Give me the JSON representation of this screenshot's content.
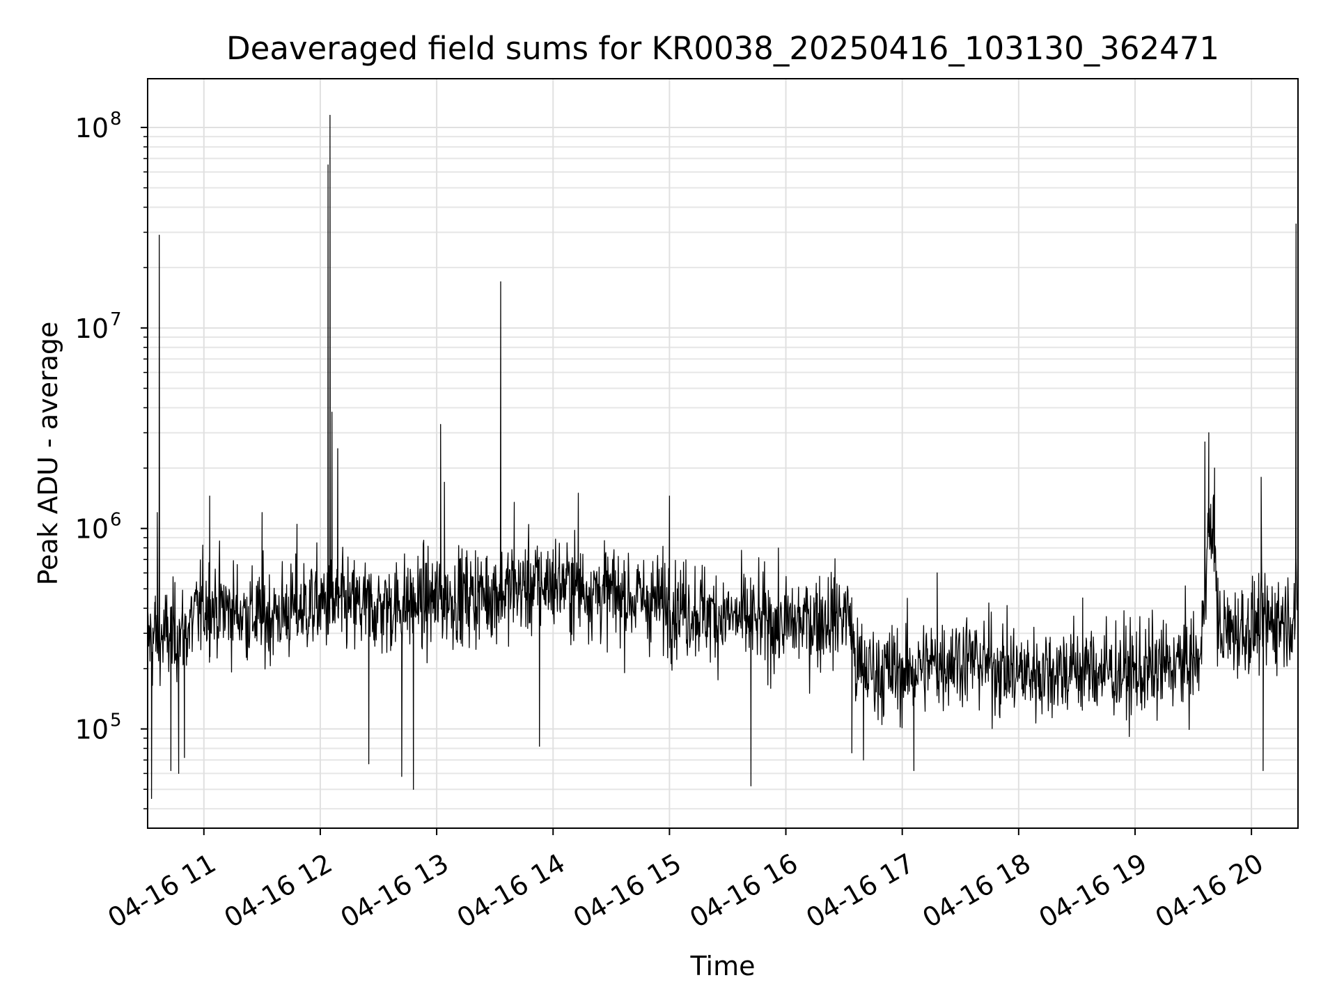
{
  "chart_data": {
    "type": "line",
    "title": "Deaveraged field sums for KR0038_20250416_103130_362471",
    "xlabel": "Time",
    "ylabel": "Peak ADU - average",
    "x_scale": "time",
    "y_scale": "log",
    "xlim": [
      "2025-04-16 10:31",
      "2025-04-16 20:24"
    ],
    "ylim": [
      32000,
      175000000
    ],
    "grid": true,
    "legend": "none",
    "x_ticks": [
      {
        "value": "2025-04-16 11:00",
        "label": "04-16 11"
      },
      {
        "value": "2025-04-16 12:00",
        "label": "04-16 12"
      },
      {
        "value": "2025-04-16 13:00",
        "label": "04-16 13"
      },
      {
        "value": "2025-04-16 14:00",
        "label": "04-16 14"
      },
      {
        "value": "2025-04-16 15:00",
        "label": "04-16 15"
      },
      {
        "value": "2025-04-16 16:00",
        "label": "04-16 16"
      },
      {
        "value": "2025-04-16 17:00",
        "label": "04-16 17"
      },
      {
        "value": "2025-04-16 18:00",
        "label": "04-16 18"
      },
      {
        "value": "2025-04-16 19:00",
        "label": "04-16 19"
      },
      {
        "value": "2025-04-16 20:00",
        "label": "04-16 20"
      }
    ],
    "y_ticks": [
      {
        "value": 100000,
        "base": "10",
        "exp": "5"
      },
      {
        "value": 1000000,
        "base": "10",
        "exp": "6"
      },
      {
        "value": 10000000,
        "base": "10",
        "exp": "7"
      },
      {
        "value": 100000000,
        "base": "10",
        "exp": "8"
      }
    ],
    "series": [
      {
        "color": "#000000",
        "baseline": [
          [
            "2025-04-16 10:31",
            280000
          ],
          [
            "2025-04-16 10:50",
            300000
          ],
          [
            "2025-04-16 11:00",
            420000
          ],
          [
            "2025-04-16 11:30",
            360000
          ],
          [
            "2025-04-16 12:00",
            420000
          ],
          [
            "2025-04-16 12:30",
            400000
          ],
          [
            "2025-04-16 13:00",
            440000
          ],
          [
            "2025-04-16 13:30",
            480000
          ],
          [
            "2025-04-16 14:00",
            540000
          ],
          [
            "2025-04-16 14:30",
            470000
          ],
          [
            "2025-04-16 15:00",
            420000
          ],
          [
            "2025-04-16 15:30",
            360000
          ],
          [
            "2025-04-16 16:00",
            330000
          ],
          [
            "2025-04-16 16:33",
            380000
          ],
          [
            "2025-04-16 16:36",
            200000
          ],
          [
            "2025-04-16 17:00",
            190000
          ],
          [
            "2025-04-16 17:30",
            230000
          ],
          [
            "2025-04-16 18:00",
            190000
          ],
          [
            "2025-04-16 18:30",
            200000
          ],
          [
            "2025-04-16 19:00",
            190000
          ],
          [
            "2025-04-16 19:34",
            220000
          ],
          [
            "2025-04-16 19:37",
            900000
          ],
          [
            "2025-04-16 19:41",
            880000
          ],
          [
            "2025-04-16 19:43",
            300000
          ],
          [
            "2025-04-16 20:00",
            320000
          ],
          [
            "2025-04-16 20:24",
            380000
          ]
        ],
        "spikes": [
          [
            "2025-04-16 10:33",
            45000
          ],
          [
            "2025-04-16 10:35",
            460000
          ],
          [
            "2025-04-16 10:36",
            1200000
          ],
          [
            "2025-04-16 10:37",
            29000000
          ],
          [
            "2025-04-16 10:43",
            62000
          ],
          [
            "2025-04-16 10:47",
            60000
          ],
          [
            "2025-04-16 10:50",
            72000
          ],
          [
            "2025-04-16 11:03",
            1450000
          ],
          [
            "2025-04-16 11:30",
            1200000
          ],
          [
            "2025-04-16 11:48",
            1050000
          ],
          [
            "2025-04-16 12:04",
            65000000
          ],
          [
            "2025-04-16 12:05",
            115000000
          ],
          [
            "2025-04-16 12:06",
            3800000
          ],
          [
            "2025-04-16 12:09",
            2500000
          ],
          [
            "2025-04-16 12:25",
            67000
          ],
          [
            "2025-04-16 12:42",
            58000
          ],
          [
            "2025-04-16 12:48",
            50000
          ],
          [
            "2025-04-16 13:02",
            3300000
          ],
          [
            "2025-04-16 13:04",
            1700000
          ],
          [
            "2025-04-16 13:33",
            17000000
          ],
          [
            "2025-04-16 13:40",
            1350000
          ],
          [
            "2025-04-16 13:53",
            82000
          ],
          [
            "2025-04-16 14:13",
            1500000
          ],
          [
            "2025-04-16 15:00",
            1450000
          ],
          [
            "2025-04-16 15:42",
            52000
          ],
          [
            "2025-04-16 16:34",
            76000
          ],
          [
            "2025-04-16 16:40",
            70000
          ],
          [
            "2025-04-16 17:06",
            62000
          ],
          [
            "2025-04-16 17:18",
            600000
          ],
          [
            "2025-04-16 18:33",
            450000
          ],
          [
            "2025-04-16 19:36",
            2700000
          ],
          [
            "2025-04-16 19:38",
            3000000
          ],
          [
            "2025-04-16 19:41",
            2000000
          ],
          [
            "2025-04-16 20:05",
            1800000
          ],
          [
            "2025-04-16 20:06",
            62000
          ],
          [
            "2025-04-16 20:23",
            33000000
          ]
        ]
      }
    ]
  }
}
